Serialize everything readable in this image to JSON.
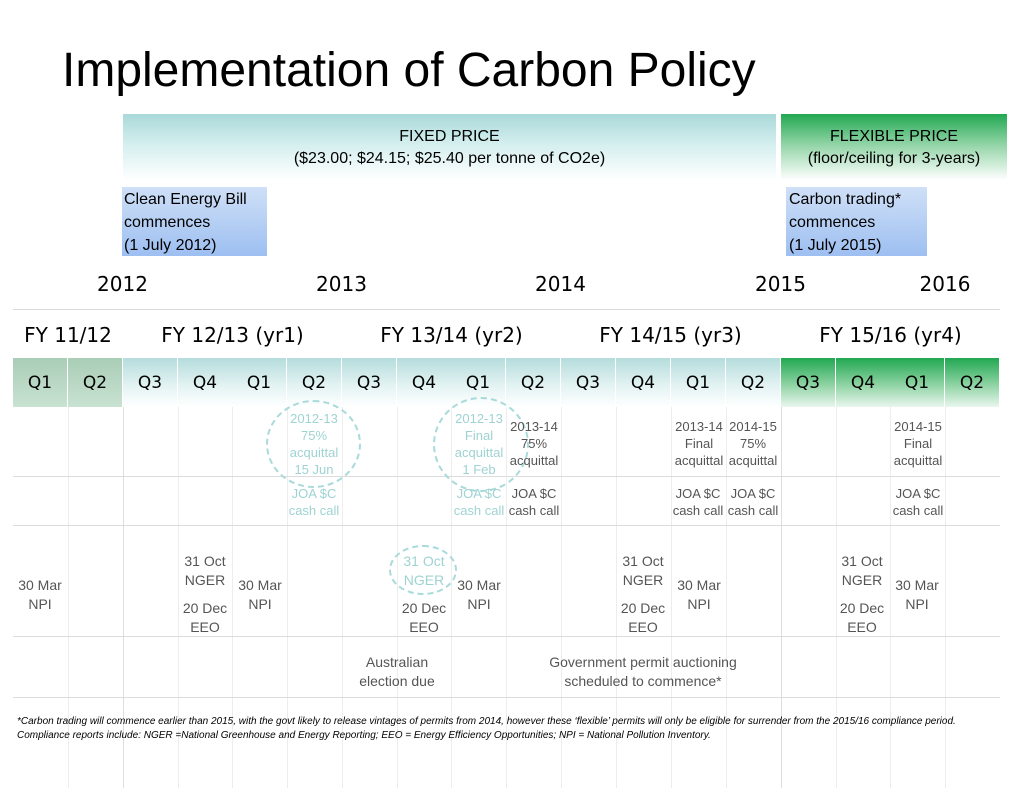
{
  "title": "Implementation of Carbon Policy",
  "bands": {
    "fixed": {
      "line1": "FIXED PRICE",
      "line2": "($23.00; $24.15; $25.40 per tonne of CO2e)"
    },
    "flexible": {
      "line1": "FLEXIBLE PRICE",
      "line2": "(floor/ceiling for 3-years)"
    }
  },
  "milestones": {
    "clean_energy": {
      "line1": "Clean Energy Bill",
      "line2": "commences",
      "line3": "(1 July 2012)"
    },
    "carbon_trading": {
      "line1": "Carbon trading*",
      "line2": "commences",
      "line3": "(1 July 2015)"
    }
  },
  "years": [
    "2012",
    "2013",
    "2014",
    "2015",
    "2016"
  ],
  "fiscal_years": [
    "FY 11/12",
    "FY 12/13 (yr1)",
    "FY 13/14 (yr2)",
    "FY 14/15 (yr3)",
    "FY 15/16 (yr4)"
  ],
  "quarters": [
    "Q1",
    "Q2",
    "Q3",
    "Q4",
    "Q1",
    "Q2",
    "Q3",
    "Q4",
    "Q1",
    "Q2",
    "Q3",
    "Q4",
    "Q1",
    "Q2",
    "Q3",
    "Q4",
    "Q1",
    "Q2"
  ],
  "acquittals": [
    {
      "l1": "2012-13",
      "l2": "75%",
      "l3": "acquittal",
      "l4": "15 Jun"
    },
    {
      "l1": "2012-13",
      "l2": "Final",
      "l3": "acquittal",
      "l4": "1 Feb"
    },
    {
      "l1": "2013-14",
      "l2": "75%",
      "l3": "acquittal"
    },
    {
      "l1": "2013-14",
      "l2": "Final",
      "l3": "acquittal"
    },
    {
      "l1": "2014-15",
      "l2": "75%",
      "l3": "acquittal"
    },
    {
      "l1": "2014-15",
      "l2": "Final",
      "l3": "acquittal"
    }
  ],
  "joa": {
    "l1": "JOA $C",
    "l2": "cash call"
  },
  "reports": {
    "npi": {
      "l1": "30 Mar",
      "l2": "NPI"
    },
    "nger": {
      "l1": "31 Oct",
      "l2": "NGER"
    },
    "eeo": {
      "l1": "20 Dec",
      "l2": "EEO"
    }
  },
  "events": {
    "election": {
      "l1": "Australian",
      "l2": "election due"
    },
    "auction": {
      "l1": "Government permit auctioning",
      "l2": "scheduled to commence*"
    }
  },
  "footnotes": {
    "line1": "*Carbon trading will commence earlier than 2015, with the govt likely to release vintages of permits from 2014, however these ‘flexible’ permits will only be eligible for surrender from the 2015/16 compliance period.",
    "line2": "Compliance reports include: NGER =National Greenhouse and Energy Reporting; EEO  = Energy Efficiency Opportunities; NPI = National Pollution Inventory."
  },
  "colors": {
    "fixed_band": "#a9d9d9",
    "flexible_band": "#21a852",
    "milestone": "#9dbff1",
    "muted_text": "#555555",
    "faint_text": "#9fd3d3"
  }
}
